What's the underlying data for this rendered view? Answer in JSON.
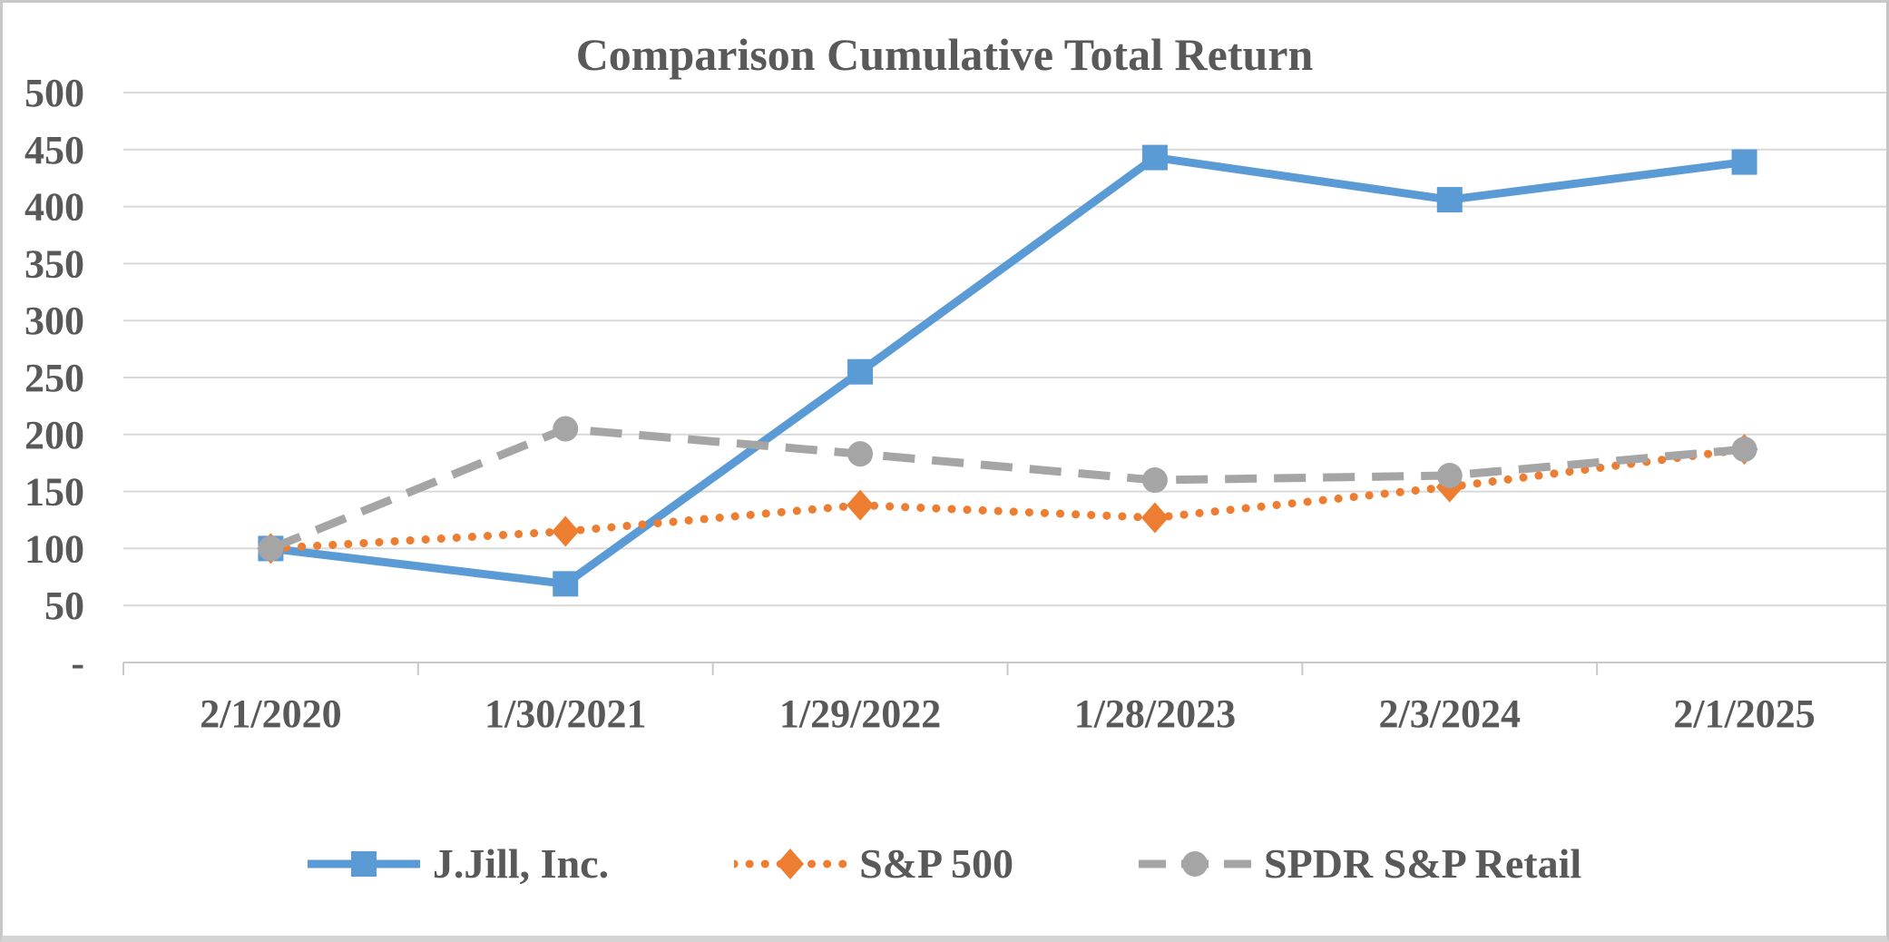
{
  "chart_data": {
    "type": "line",
    "title": "Comparison Cumulative Total Return",
    "x_categories": [
      "2/1/2020",
      "1/30/2021",
      "1/29/2022",
      "1/28/2023",
      "2/3/2024",
      "2/1/2025"
    ],
    "series": [
      {
        "name": "J.Jill, Inc.",
        "values": [
          100,
          69,
          255,
          443,
          406,
          439
        ],
        "color": "#5B9BD5",
        "line_style": "solid",
        "marker": "square"
      },
      {
        "name": "S&P 500",
        "values": [
          100,
          115,
          138,
          127,
          154,
          187
        ],
        "color": "#ED7D31",
        "line_style": "dotted",
        "marker": "diamond"
      },
      {
        "name": "SPDR S&P Retail",
        "values": [
          100,
          205,
          183,
          160,
          164,
          187
        ],
        "color": "#A5A5A5",
        "line_style": "dashed",
        "marker": "circle"
      }
    ],
    "y_axis": {
      "min": 0,
      "max": 500,
      "step": 50,
      "tick_labels": [
        "-",
        "50",
        "100",
        "150",
        "200",
        "250",
        "300",
        "350",
        "400",
        "450",
        "500"
      ]
    },
    "grid": true,
    "legend_position": "bottom",
    "colors": {
      "grid": "#D9D9D9",
      "axis_line": "#C9C9C9",
      "axis_text": "#595959",
      "title_text": "#595959",
      "frame_border": "#C8C8C8"
    }
  }
}
